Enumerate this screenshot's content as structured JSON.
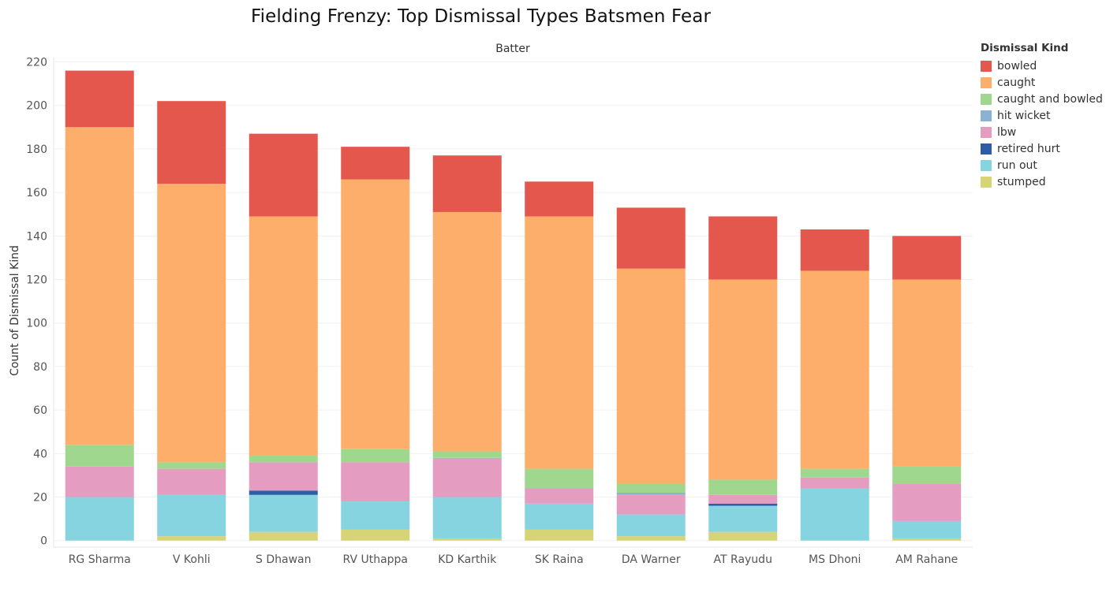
{
  "chart_data": {
    "type": "bar",
    "stacked": true,
    "title": "Fielding Frenzy: Top Dismissal Types Batsmen Fear",
    "header": "Batter",
    "xlabel": "",
    "ylabel": "Count of Dismissal Kind",
    "ylim": [
      -3,
      222
    ],
    "yticks": [
      0,
      20,
      40,
      60,
      80,
      100,
      120,
      140,
      160,
      180,
      200,
      220
    ],
    "grid": true,
    "legend_position": "right",
    "legend_title": "Dismissal Kind",
    "categories": [
      "RG Sharma",
      "V Kohli",
      "S Dhawan",
      "RV Uthappa",
      "KD Karthik",
      "SK Raina",
      "DA Warner",
      "AT Rayudu",
      "MS Dhoni",
      "AM Rahane"
    ],
    "series": [
      {
        "name": "stumped",
        "color": "#d7d475",
        "values": [
          0,
          2,
          4,
          5,
          1,
          5,
          2,
          4,
          0,
          1
        ]
      },
      {
        "name": "run out",
        "color": "#86d4df",
        "values": [
          20,
          19,
          17,
          13,
          19,
          12,
          10,
          12,
          24,
          8
        ]
      },
      {
        "name": "retired hurt",
        "color": "#2c5ea8",
        "values": [
          0,
          0,
          2,
          0,
          0,
          0,
          0,
          1,
          0,
          0
        ]
      },
      {
        "name": "lbw",
        "color": "#e59cc1",
        "values": [
          14,
          12,
          13,
          18,
          18,
          7,
          9,
          4,
          5,
          17
        ]
      },
      {
        "name": "hit wicket",
        "color": "#8bb1d4",
        "values": [
          0,
          0,
          0,
          0,
          0,
          0,
          1,
          0,
          0,
          0
        ]
      },
      {
        "name": "caught and bowled",
        "color": "#9fd78e",
        "values": [
          10,
          3,
          3,
          6,
          3,
          9,
          4,
          7,
          4,
          8
        ]
      },
      {
        "name": "caught",
        "color": "#fdae6b",
        "values": [
          146,
          128,
          110,
          124,
          110,
          116,
          99,
          92,
          91,
          86
        ]
      },
      {
        "name": "bowled",
        "color": "#e4574c",
        "values": [
          26,
          38,
          38,
          15,
          26,
          16,
          28,
          29,
          19,
          20
        ]
      }
    ]
  },
  "legend": {
    "title": "Dismissal Kind",
    "items": [
      {
        "label": "bowled",
        "color": "#e4574c"
      },
      {
        "label": "caught",
        "color": "#fdae6b"
      },
      {
        "label": "caught and bowled",
        "color": "#9fd78e"
      },
      {
        "label": "hit wicket",
        "color": "#8bb1d4"
      },
      {
        "label": "lbw",
        "color": "#e59cc1"
      },
      {
        "label": "retired hurt",
        "color": "#2c5ea8"
      },
      {
        "label": "run out",
        "color": "#86d4df"
      },
      {
        "label": "stumped",
        "color": "#d7d475"
      }
    ]
  }
}
